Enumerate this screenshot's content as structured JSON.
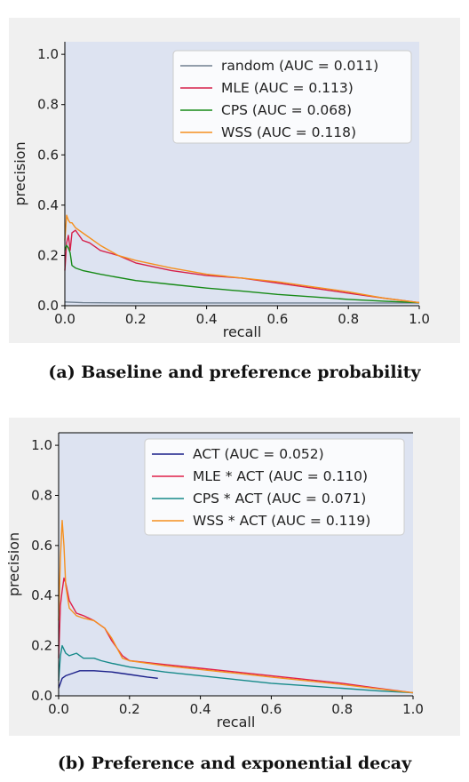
{
  "captions": {
    "a": "(a) Baseline and preference probability",
    "b": "(b) Preference and exponential decay"
  },
  "chart_data": [
    {
      "type": "line",
      "xlabel": "recall",
      "ylabel": "precision",
      "xlim": [
        0,
        1
      ],
      "ylim": [
        0,
        1.05
      ],
      "xticks": [
        "0.0",
        "0.2",
        "0.4",
        "0.6",
        "0.8",
        "1.0"
      ],
      "yticks": [
        "0.0",
        "0.2",
        "0.4",
        "0.6",
        "0.8",
        "1.0"
      ],
      "grid": false,
      "legend_position": "top-right",
      "background": "#dde3f1",
      "series": [
        {
          "name": "random (AUC = 0.011)",
          "color": "#708090",
          "x": [
            0,
            0.05,
            0.2,
            0.4,
            0.6,
            0.8,
            1.0
          ],
          "y": [
            0.015,
            0.012,
            0.011,
            0.011,
            0.011,
            0.011,
            0.011
          ]
        },
        {
          "name": "MLE (AUC = 0.113)",
          "color": "#d6204a",
          "x": [
            0,
            0.005,
            0.01,
            0.015,
            0.02,
            0.03,
            0.05,
            0.07,
            0.1,
            0.15,
            0.2,
            0.3,
            0.4,
            0.5,
            0.6,
            0.7,
            0.8,
            0.9,
            1.0
          ],
          "y": [
            0.14,
            0.25,
            0.28,
            0.22,
            0.29,
            0.3,
            0.26,
            0.25,
            0.22,
            0.2,
            0.17,
            0.14,
            0.12,
            0.11,
            0.09,
            0.07,
            0.05,
            0.03,
            0.012
          ]
        },
        {
          "name": "CPS (AUC = 0.068)",
          "color": "#168a16",
          "x": [
            0,
            0.005,
            0.01,
            0.015,
            0.02,
            0.03,
            0.05,
            0.1,
            0.2,
            0.3,
            0.4,
            0.5,
            0.6,
            0.7,
            0.8,
            0.9,
            1.0
          ],
          "y": [
            0.22,
            0.24,
            0.23,
            0.21,
            0.16,
            0.15,
            0.14,
            0.125,
            0.1,
            0.085,
            0.07,
            0.058,
            0.045,
            0.035,
            0.025,
            0.018,
            0.012
          ]
        },
        {
          "name": "WSS (AUC = 0.118)",
          "color": "#f5901e",
          "x": [
            0,
            0.005,
            0.01,
            0.015,
            0.02,
            0.03,
            0.05,
            0.1,
            0.15,
            0.2,
            0.3,
            0.4,
            0.5,
            0.6,
            0.7,
            0.8,
            0.9,
            1.0
          ],
          "y": [
            0.26,
            0.36,
            0.34,
            0.33,
            0.33,
            0.31,
            0.29,
            0.24,
            0.2,
            0.18,
            0.15,
            0.125,
            0.11,
            0.095,
            0.075,
            0.055,
            0.03,
            0.012
          ]
        }
      ]
    },
    {
      "type": "line",
      "xlabel": "recall",
      "ylabel": "precision",
      "xlim": [
        0,
        1
      ],
      "ylim": [
        0,
        1.05
      ],
      "xticks": [
        "0.0",
        "0.2",
        "0.4",
        "0.6",
        "0.8",
        "1.0"
      ],
      "yticks": [
        "0.0",
        "0.2",
        "0.4",
        "0.6",
        "0.8",
        "1.0"
      ],
      "grid": false,
      "legend_position": "top-right",
      "background": "#dde3f1",
      "series": [
        {
          "name": "ACT (AUC = 0.052)",
          "color": "#1a1f8a",
          "x": [
            0,
            0.01,
            0.02,
            0.04,
            0.06,
            0.1,
            0.15,
            0.2,
            0.25,
            0.28
          ],
          "y": [
            0.03,
            0.07,
            0.08,
            0.09,
            0.1,
            0.1,
            0.095,
            0.085,
            0.075,
            0.07
          ]
        },
        {
          "name": "MLE * ACT (AUC = 0.110)",
          "color": "#e0204a",
          "x": [
            0,
            0.005,
            0.01,
            0.015,
            0.02,
            0.03,
            0.05,
            0.07,
            0.1,
            0.13,
            0.15,
            0.18,
            0.2,
            0.3,
            0.4,
            0.5,
            0.6,
            0.7,
            0.8,
            0.9,
            1.0
          ],
          "y": [
            0.15,
            0.36,
            0.42,
            0.47,
            0.45,
            0.38,
            0.33,
            0.32,
            0.3,
            0.27,
            0.22,
            0.16,
            0.14,
            0.125,
            0.11,
            0.095,
            0.08,
            0.065,
            0.05,
            0.03,
            0.012
          ]
        },
        {
          "name": "CPS * ACT (AUC = 0.071)",
          "color": "#168a8a",
          "x": [
            0,
            0.005,
            0.01,
            0.02,
            0.03,
            0.05,
            0.07,
            0.1,
            0.12,
            0.15,
            0.2,
            0.3,
            0.4,
            0.5,
            0.6,
            0.7,
            0.8,
            0.9,
            1.0
          ],
          "y": [
            0.06,
            0.16,
            0.2,
            0.17,
            0.16,
            0.17,
            0.15,
            0.15,
            0.14,
            0.13,
            0.115,
            0.095,
            0.08,
            0.065,
            0.05,
            0.04,
            0.03,
            0.02,
            0.012
          ]
        },
        {
          "name": "WSS * ACT (AUC = 0.119)",
          "color": "#f5901e",
          "x": [
            0,
            0.005,
            0.01,
            0.015,
            0.02,
            0.03,
            0.05,
            0.07,
            0.1,
            0.13,
            0.15,
            0.18,
            0.2,
            0.3,
            0.4,
            0.5,
            0.6,
            0.7,
            0.8,
            0.9,
            1.0
          ],
          "y": [
            0.3,
            0.55,
            0.7,
            0.6,
            0.44,
            0.35,
            0.32,
            0.31,
            0.3,
            0.27,
            0.23,
            0.15,
            0.14,
            0.12,
            0.105,
            0.09,
            0.075,
            0.06,
            0.045,
            0.028,
            0.012
          ]
        }
      ]
    }
  ]
}
